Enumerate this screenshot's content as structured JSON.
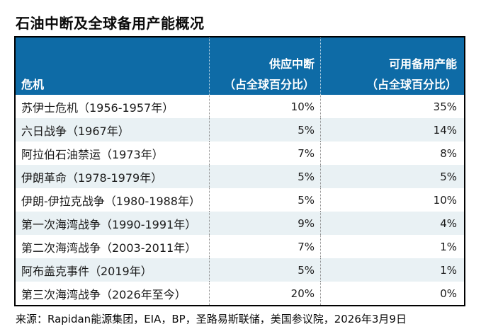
{
  "title": "石油中断及全球备用产能概况",
  "source": "来源：Rapidan能源集团，EIA，BP，圣路易斯联储，美国参议院，2026年3月9日",
  "colors": {
    "header_bg": "#0e6ba6",
    "row_alt_bg": "#e9f1f4",
    "border": "#000000",
    "header_text": "#ffffff"
  },
  "table": {
    "header": {
      "crisis": "危机",
      "disruption_line1": "供应中断",
      "disruption_line2": "（占全球百分比）",
      "capacity_line1": "可用备用产能",
      "capacity_line2": "（占全球百分比）"
    },
    "rows": [
      {
        "crisis": "苏伊士危机（1956-1957年）",
        "disruption": "10%",
        "capacity": "35%"
      },
      {
        "crisis": "六日战争（1967年）",
        "disruption": "5%",
        "capacity": "14%"
      },
      {
        "crisis": "阿拉伯石油禁运（1973年）",
        "disruption": "7%",
        "capacity": "8%"
      },
      {
        "crisis": "伊朗革命（1978-1979年）",
        "disruption": "5%",
        "capacity": "5%"
      },
      {
        "crisis": "伊朗-伊拉克战争（1980-1988年）",
        "disruption": "5%",
        "capacity": "10%"
      },
      {
        "crisis": "第一次海湾战争（1990-1991年）",
        "disruption": "9%",
        "capacity": "4%"
      },
      {
        "crisis": "第二次海湾战争（2003-2011年）",
        "disruption": "7%",
        "capacity": "1%"
      },
      {
        "crisis": "阿布盖克事件（2019年）",
        "disruption": "5%",
        "capacity": "1%"
      },
      {
        "crisis": "第三次海湾战争（2026年至今）",
        "disruption": "20%",
        "capacity": "0%"
      }
    ]
  },
  "chart_data": {
    "type": "table",
    "title": "石油中断及全球备用产能概况",
    "columns": [
      "危机",
      "供应中断（占全球百分比）",
      "可用备用产能（占全球百分比）"
    ],
    "rows": [
      [
        "苏伊士危机（1956-1957年）",
        "10%",
        "35%"
      ],
      [
        "六日战争（1967年）",
        "5%",
        "14%"
      ],
      [
        "阿拉伯石油禁运（1973年）",
        "7%",
        "8%"
      ],
      [
        "伊朗革命（1978-1979年）",
        "5%",
        "5%"
      ],
      [
        "伊朗-伊拉克战争（1980-1988年）",
        "5%",
        "10%"
      ],
      [
        "第一次海湾战争（1990-1991年）",
        "9%",
        "4%"
      ],
      [
        "第二次海湾战争（2003-2011年）",
        "7%",
        "1%"
      ],
      [
        "阿布盖克事件（2019年）",
        "5%",
        "1%"
      ],
      [
        "第三次海湾战争（2026年至今）",
        "20%",
        "0%"
      ]
    ],
    "source": "来源：Rapidan能源集团，EIA，BP，圣路易斯联储，美国参议院，2026年3月9日",
    "layout": {
      "row_striping": "alternating white / light blue",
      "value_alignment": "right",
      "header_alignment": "col1 bottom-left, col2-3 bottom-right",
      "column_separators": "vertical dotted lines"
    }
  }
}
